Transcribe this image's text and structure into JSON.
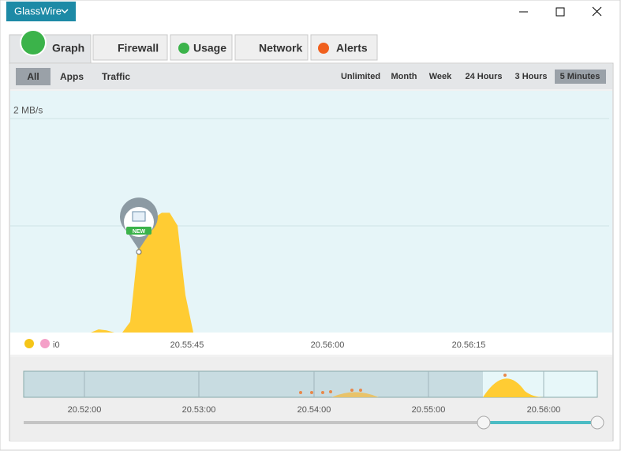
{
  "window": {
    "app_button": "GlassWire"
  },
  "tabs": [
    "Graph",
    "Firewall",
    "Usage",
    "Network",
    "Alerts"
  ],
  "filters": [
    "All",
    "Apps",
    "Traffic"
  ],
  "ranges": [
    "Unlimited",
    "Month",
    "Week",
    "24 Hours",
    "3 Hours",
    "5 Minutes"
  ],
  "graph": {
    "ylim": [
      0,
      2.26
    ],
    "yticks": [
      {
        "value": 2,
        "label": "2 MB/s"
      }
    ],
    "values": [
      0,
      0.03,
      0.02,
      0,
      0,
      0.1,
      0.8,
      0.95,
      1.07,
      1.12,
      1.12,
      1.0,
      0.35,
      0
    ],
    "marker": "NEW",
    "cut_label": "i0",
    "x_ticks": [
      "20.55:45",
      "20.56:00",
      "20.56:15"
    ]
  },
  "timeline": {
    "ticks": [
      "20.52:00",
      "20.53:00",
      "20.54:00",
      "20.55:00",
      "20.56:00"
    ]
  }
}
